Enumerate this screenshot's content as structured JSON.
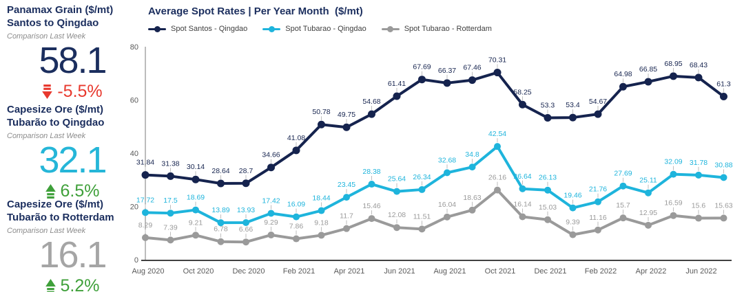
{
  "kpis": [
    {
      "title_line1": "Panamax Grain ($/mt)",
      "title_line2": "Santos to Qingdao",
      "subtitle": "Comparison Last Week",
      "value": "58.1",
      "value_color": "#1b2e5e",
      "change": "-5.5%",
      "direction": "down",
      "change_color": "#e8392e",
      "icon": "striped-arrow-down-icon"
    },
    {
      "title_line1": "Capesize Ore ($/mt)",
      "title_line2": "Tubarão to Qingdao",
      "subtitle": "Comparison Last Week",
      "value": "32.1",
      "value_color": "#25b6d8",
      "change": "6.5%",
      "direction": "up",
      "change_color": "#3fa03a",
      "icon": "striped-arrow-up-icon"
    },
    {
      "title_line1": "Capesize Ore ($/mt)",
      "title_line2": "Tubarão to Rotterdam",
      "subtitle": "Comparison Last Week",
      "value": "16.1",
      "value_color": "#a5a5a5",
      "change": "5.2%",
      "direction": "up",
      "change_color": "#3fa03a",
      "icon": "striped-arrow-up-icon"
    }
  ],
  "chart_data": {
    "type": "line",
    "title": "Average Spot Rates | Per Year Month  ($/mt)",
    "x": [
      "Aug 2020",
      "Sep 2020",
      "Oct 2020",
      "Nov 2020",
      "Dec 2020",
      "Jan 2021",
      "Feb 2021",
      "Mar 2021",
      "Apr 2021",
      "May 2021",
      "Jun 2021",
      "Jul 2021",
      "Aug 2021",
      "Sep 2021",
      "Oct 2021",
      "Nov 2021",
      "Dec 2021",
      "Jan 2022",
      "Feb 2022",
      "Mar 2022",
      "Apr 2022",
      "May 2022",
      "Jun 2022",
      "Jul 2022"
    ],
    "series": [
      {
        "name": "Spot Santos - Qingdao",
        "color": "#15234e",
        "values": [
          31.84,
          31.38,
          30.14,
          28.64,
          28.7,
          34.66,
          41.08,
          50.78,
          49.75,
          54.68,
          61.41,
          67.69,
          66.37,
          67.46,
          70.31,
          58.25,
          53.3,
          53.4,
          54.67,
          64.98,
          66.85,
          68.95,
          68.43,
          61.3
        ]
      },
      {
        "name": "Spot Tubarao - Qingdao",
        "color": "#1eb4dc",
        "values": [
          17.72,
          17.5,
          18.69,
          13.89,
          13.93,
          17.42,
          16.09,
          18.44,
          23.45,
          28.38,
          25.64,
          26.34,
          32.68,
          34.8,
          42.54,
          26.64,
          26.13,
          19.46,
          21.76,
          27.69,
          25.11,
          32.09,
          31.78,
          30.88
        ]
      },
      {
        "name": "Spot Tubarao - Rotterdam",
        "color": "#9a9a9a",
        "values": [
          8.29,
          7.39,
          9.21,
          6.78,
          6.66,
          9.29,
          7.86,
          9.18,
          11.7,
          15.46,
          12.08,
          11.51,
          16.04,
          18.63,
          26.16,
          16.14,
          15.03,
          9.39,
          11.16,
          15.7,
          12.95,
          16.59,
          15.6,
          15.63
        ]
      }
    ],
    "ylim": [
      0,
      80
    ],
    "yticks": [
      0,
      20,
      40,
      60,
      80
    ],
    "xtick_labels": [
      "Aug 2020",
      "Oct 2020",
      "Dec 2020",
      "Feb 2021",
      "Apr 2021",
      "Jun 2021",
      "Aug 2021",
      "Oct 2021",
      "Dec 2021",
      "Feb 2022",
      "Apr 2022",
      "Jun 2022"
    ],
    "legend_position": "top",
    "grid": false,
    "data_labels": true,
    "label_leader_color": "#bdbdbd",
    "axis_line_color": "#404040",
    "axis_text_color": "#595959"
  }
}
